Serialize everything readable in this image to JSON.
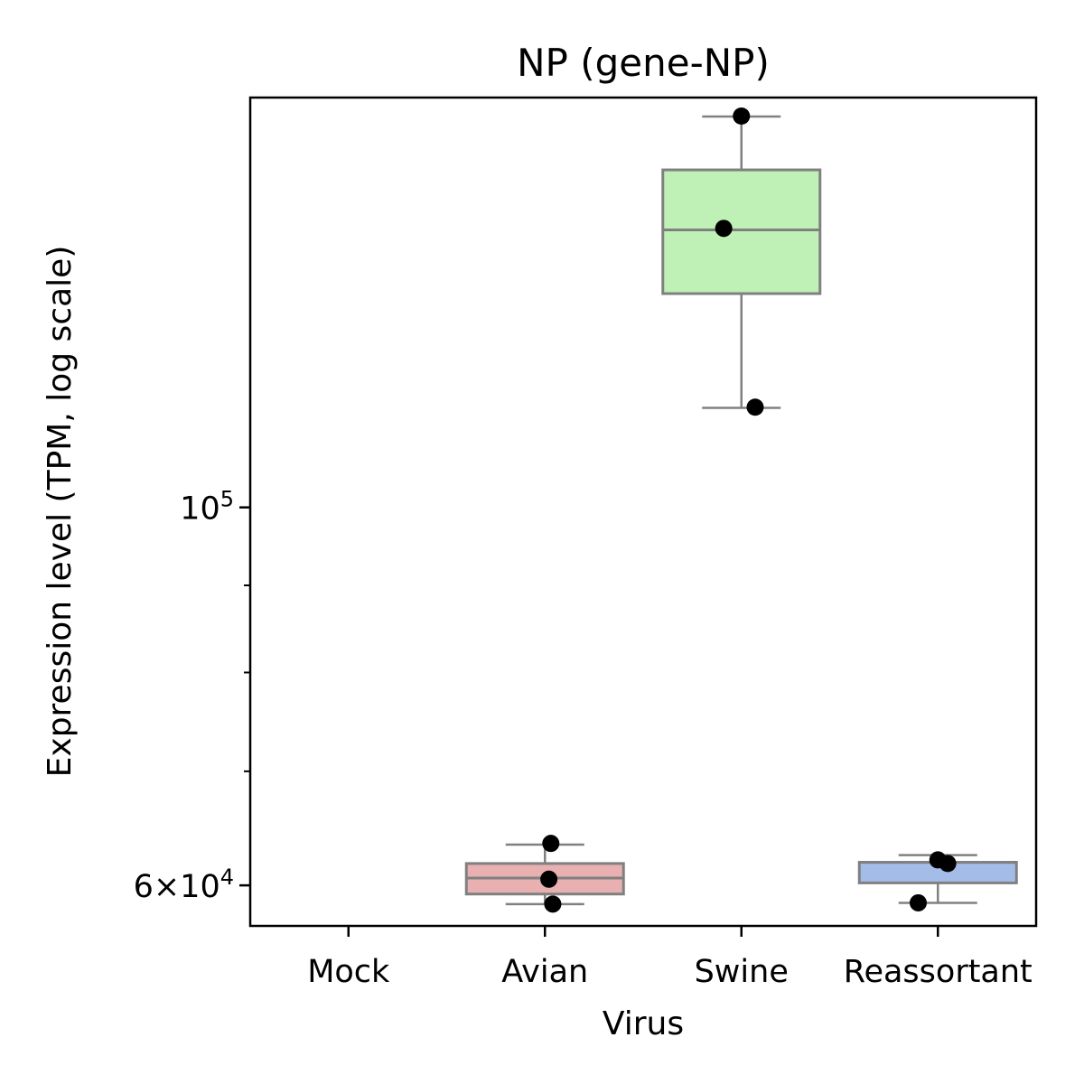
{
  "chart_data": {
    "type": "box",
    "title": "NP (gene-NP)",
    "xlabel": "Virus",
    "ylabel": "Expression level (TPM, log scale)",
    "yscale": "log",
    "ylim": [
      56800,
      174000
    ],
    "categories": [
      "Mock",
      "Avian",
      "Swine",
      "Reassortant"
    ],
    "y_ticks": [
      {
        "value": 60000,
        "base": "6×10",
        "exp": "4"
      },
      {
        "value": 100000,
        "base": "10",
        "exp": "5"
      }
    ],
    "minor_ticks": [
      70000,
      80000,
      90000
    ],
    "grid": false,
    "colors": {
      "Avian": "#e8b0b0",
      "Swine": "#bff0b5",
      "Reassortant": "#a4bde8",
      "box_edge": "#808080",
      "points": "#000000"
    },
    "boxes": [
      {
        "category": "Mock",
        "whisker_low": null,
        "q1": null,
        "median": null,
        "q3": null,
        "whisker_high": null
      },
      {
        "category": "Avian",
        "whisker_low": 58500,
        "q1": 59300,
        "median": 60600,
        "q3": 61800,
        "whisker_high": 63400
      },
      {
        "category": "Swine",
        "whisker_low": 114400,
        "q1": 133500,
        "median": 145500,
        "q3": 157800,
        "whisker_high": 169600
      },
      {
        "category": "Reassortant",
        "whisker_low": 58600,
        "q1": 60200,
        "median": 61900,
        "q3": 61900,
        "whisker_high": 62500
      }
    ],
    "points": [
      {
        "category": "Avian",
        "value": 63500,
        "offset": 0.03
      },
      {
        "category": "Avian",
        "value": 60500,
        "offset": 0.02
      },
      {
        "category": "Avian",
        "value": 58500,
        "offset": 0.04
      },
      {
        "category": "Swine",
        "value": 169700,
        "offset": 0.0
      },
      {
        "category": "Swine",
        "value": 145800,
        "offset": -0.09
      },
      {
        "category": "Swine",
        "value": 114500,
        "offset": 0.07
      },
      {
        "category": "Reassortant",
        "value": 62100,
        "offset": 0.0
      },
      {
        "category": "Reassortant",
        "value": 61800,
        "offset": 0.05
      },
      {
        "category": "Reassortant",
        "value": 58600,
        "offset": -0.1
      }
    ]
  }
}
